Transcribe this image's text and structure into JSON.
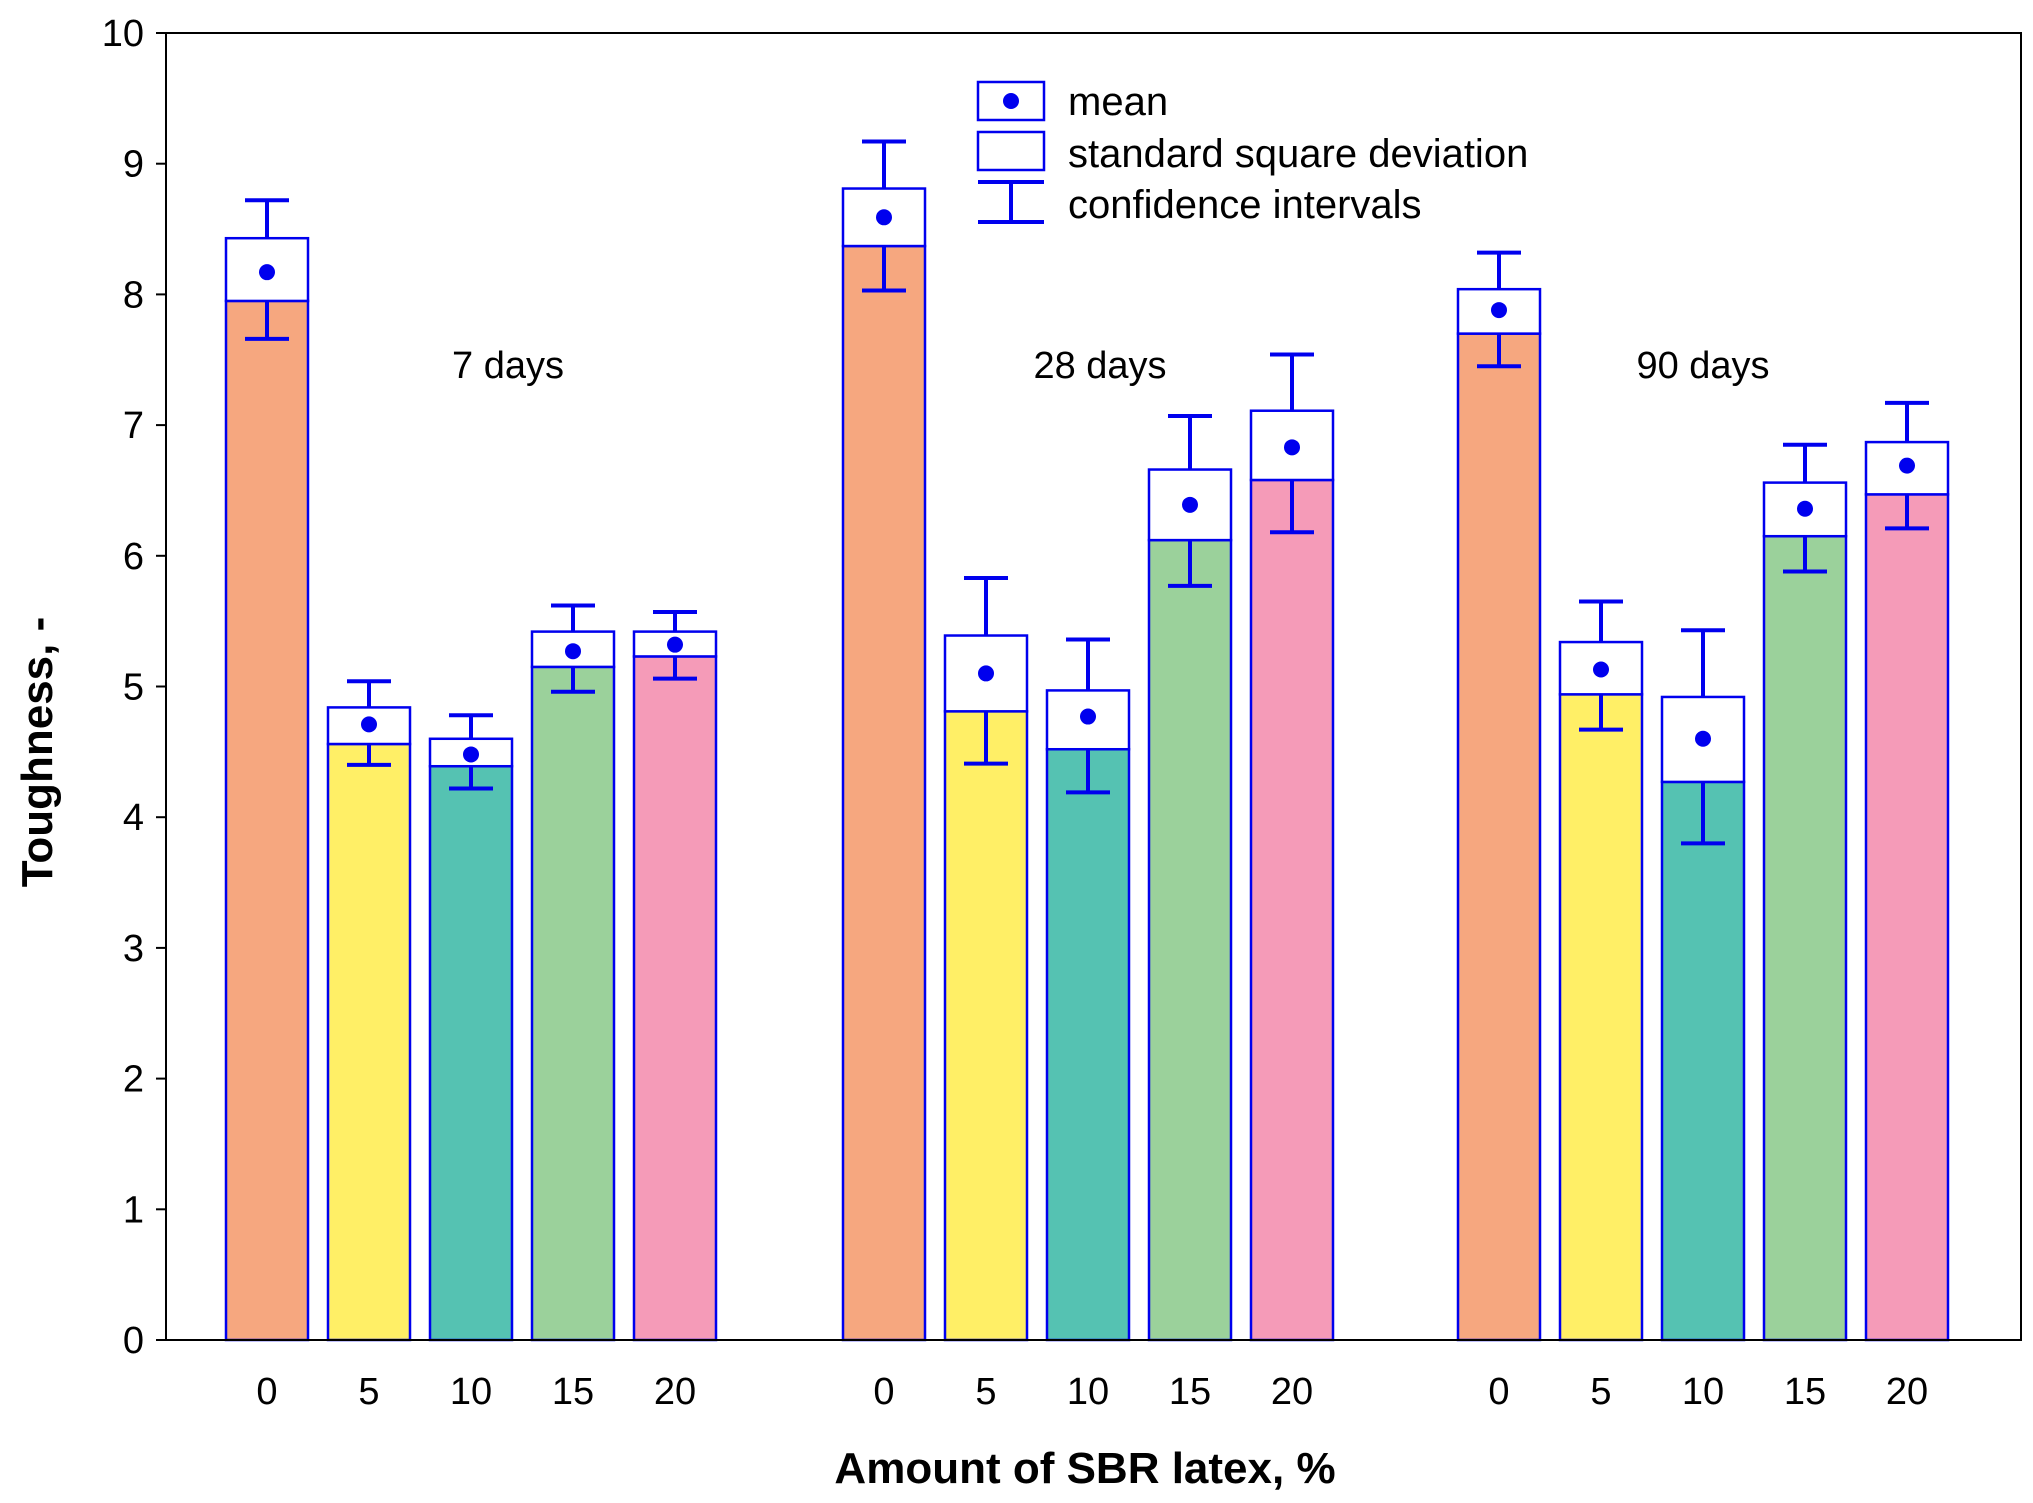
{
  "chart_data": {
    "type": "bar",
    "title": "",
    "xlabel": "Amount of SBR latex, %",
    "ylabel": "Toughness, -",
    "ylim": [
      0,
      10
    ],
    "yticks": [
      "0",
      "1",
      "2",
      "3",
      "4",
      "5",
      "6",
      "7",
      "8",
      "9",
      "10"
    ],
    "categories": [
      "0",
      "5",
      "10",
      "15",
      "20"
    ],
    "colors": [
      "#F6A77F",
      "#FFEF66",
      "#55C2B2",
      "#9BD19B",
      "#F59BB8"
    ],
    "stroke_color": "#0000EE",
    "groups": [
      {
        "name": "7 days",
        "mean": [
          8.17,
          4.71,
          4.48,
          5.27,
          5.32
        ],
        "sd_low": [
          7.95,
          4.56,
          4.39,
          5.15,
          5.23
        ],
        "sd_high": [
          8.43,
          4.84,
          4.6,
          5.42,
          5.42
        ],
        "ci_low": [
          7.66,
          4.4,
          4.22,
          4.96,
          5.06
        ],
        "ci_high": [
          8.72,
          5.04,
          4.78,
          5.62,
          5.57
        ]
      },
      {
        "name": "28 days",
        "mean": [
          8.59,
          5.1,
          4.77,
          6.39,
          6.83
        ],
        "sd_low": [
          8.37,
          4.81,
          4.52,
          6.12,
          6.58
        ],
        "sd_high": [
          8.81,
          5.39,
          4.97,
          6.66,
          7.11
        ],
        "ci_low": [
          8.03,
          4.41,
          4.19,
          5.77,
          6.18
        ],
        "ci_high": [
          9.17,
          5.83,
          5.36,
          7.07,
          7.54
        ]
      },
      {
        "name": "90 days",
        "mean": [
          7.88,
          5.13,
          4.6,
          6.36,
          6.69
        ],
        "sd_low": [
          7.7,
          4.94,
          4.27,
          6.15,
          6.47
        ],
        "sd_high": [
          8.04,
          5.34,
          4.92,
          6.56,
          6.87
        ],
        "ci_low": [
          7.45,
          4.67,
          3.8,
          5.88,
          6.21
        ],
        "ci_high": [
          8.32,
          5.65,
          5.43,
          6.85,
          7.17
        ]
      }
    ],
    "legend": {
      "position": "top-center",
      "entries": [
        "mean",
        "standard square deviation",
        "confidence intervals"
      ]
    }
  }
}
